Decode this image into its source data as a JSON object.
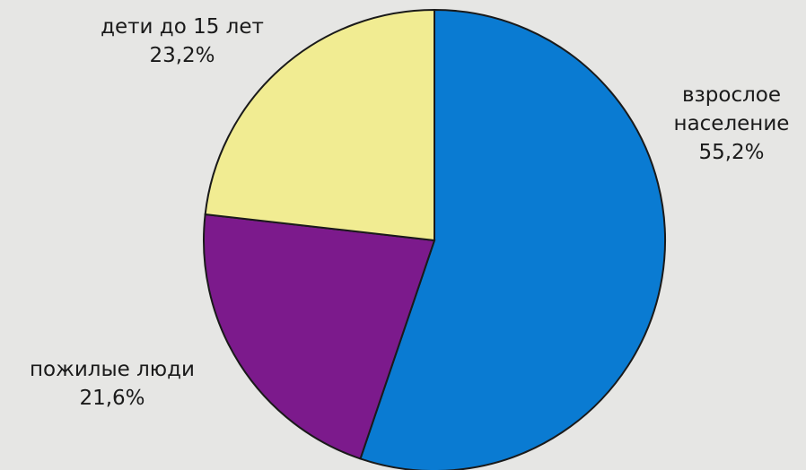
{
  "chart_data": {
    "type": "pie",
    "categories": [
      "взрослое население",
      "пожилые люди",
      "дети до 15 лет"
    ],
    "values": [
      55.2,
      21.6,
      23.2
    ],
    "value_labels": [
      "55,2%",
      "21,6%",
      "23,2%"
    ],
    "colors": [
      "#0a7bd2",
      "#7c1a8c",
      "#f1ec92"
    ]
  }
}
